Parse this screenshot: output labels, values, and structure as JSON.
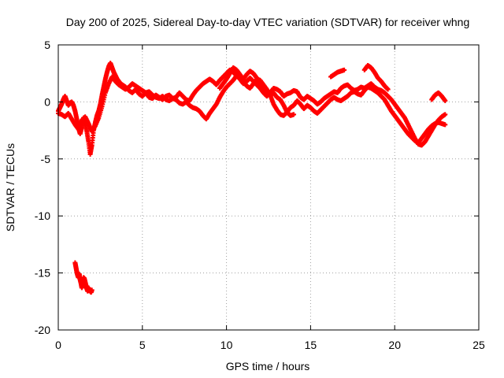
{
  "chart_data": {
    "type": "scatter",
    "title": "Day 200 of 2025, Sidereal Day-to-day VTEC variation (SDTVAR) for receiver whng",
    "xlabel": "GPS time / hours",
    "ylabel": "SDTVAR / TECUs",
    "xlim": [
      0,
      25
    ],
    "ylim": [
      -20,
      5
    ],
    "xticks": [
      0,
      5,
      10,
      15,
      20,
      25
    ],
    "yticks": [
      -20,
      -15,
      -10,
      -5,
      0,
      5
    ],
    "grid": true,
    "marker": "+",
    "series": [
      {
        "name": "SDTVAR",
        "color": "#ff0000",
        "segments": [
          {
            "x": [
              0.0,
              0.1,
              0.2,
              0.3,
              0.4,
              0.5,
              0.6,
              0.7,
              0.8,
              0.9,
              1.0,
              1.1,
              1.2,
              1.3,
              1.4,
              1.5,
              1.6,
              1.7,
              1.8,
              1.9,
              2.0,
              2.1,
              2.2,
              2.3,
              2.4,
              2.5,
              2.6,
              2.7,
              2.8,
              2.9,
              3.0,
              3.1,
              3.2,
              3.3,
              3.4,
              3.5,
              3.6,
              3.7,
              3.8,
              3.9,
              4.0,
              4.2,
              4.4,
              4.6,
              4.8,
              5.0,
              5.2,
              5.4,
              5.6,
              5.8,
              6.0,
              6.2,
              6.4,
              6.6,
              6.8,
              7.0,
              7.2,
              7.4,
              7.6,
              7.8,
              8.0,
              8.2,
              8.4,
              8.6,
              8.8,
              9.0,
              9.2,
              9.4,
              9.6,
              9.8,
              10.0,
              10.2,
              10.4,
              10.6,
              10.8,
              11.0,
              11.2,
              11.4,
              11.6,
              11.8,
              12.0,
              12.2,
              12.4,
              12.6,
              12.8,
              13.0,
              13.2,
              13.4,
              13.6,
              13.8,
              14.0,
              14.2,
              14.4,
              14.6,
              14.8,
              15.0,
              15.2,
              15.4,
              15.6,
              15.8,
              16.0,
              16.2,
              16.4,
              16.6,
              16.8,
              17.0,
              17.2,
              17.4,
              17.6,
              17.8,
              18.0,
              18.2,
              18.4,
              18.6,
              18.8,
              19.0,
              19.2,
              19.4,
              19.6,
              19.8,
              20.0,
              20.2,
              20.4,
              20.6,
              20.8,
              21.0,
              21.2,
              21.4,
              21.6,
              21.8,
              22.0,
              22.2,
              22.4,
              22.6,
              22.8,
              23.0
            ],
            "y": [
              -0.8,
              -0.5,
              -0.2,
              0.2,
              0.5,
              0.1,
              -0.3,
              -0.1,
              0.0,
              -0.3,
              -0.8,
              -1.5,
              -2.3,
              -2.8,
              -2.2,
              -1.4,
              -1.8,
              -2.6,
              -3.5,
              -4.6,
              -3.8,
              -2.5,
              -1.8,
              -1.2,
              -0.8,
              -0.2,
              0.6,
              1.3,
              2.0,
              2.6,
              3.1,
              3.4,
              3.0,
              2.6,
              2.3,
              2.0,
              1.8,
              1.6,
              1.5,
              1.4,
              1.3,
              1.0,
              0.8,
              1.1,
              0.7,
              0.5,
              0.8,
              0.4,
              0.3,
              0.6,
              0.4,
              0.2,
              0.5,
              0.6,
              0.3,
              0.4,
              0.8,
              0.5,
              0.2,
              0.1,
              0.6,
              1.0,
              1.3,
              1.6,
              1.8,
              2.0,
              1.8,
              1.5,
              1.9,
              2.2,
              2.5,
              2.8,
              2.6,
              2.3,
              2.0,
              1.6,
              1.8,
              2.1,
              1.8,
              1.5,
              1.2,
              0.8,
              0.5,
              0.8,
              1.2,
              1.1,
              0.9,
              0.5,
              0.7,
              0.8,
              1.0,
              0.9,
              0.4,
              0.2,
              0.5,
              0.3,
              0.1,
              -0.2,
              0.0,
              0.3,
              0.5,
              0.7,
              0.9,
              0.8,
              1.2,
              1.4,
              1.5,
              1.2,
              1.0,
              1.1,
              1.3,
              1.2,
              1.4,
              1.6,
              1.3,
              1.1,
              1.0,
              0.8,
              0.5,
              0.2,
              -0.2,
              -0.6,
              -1.0,
              -1.4,
              -2.0,
              -2.6,
              -3.2,
              -3.7,
              -3.8,
              -3.5,
              -3.0,
              -2.5,
              -2.0,
              -1.6,
              -1.3,
              -1.1
            ]
          },
          {
            "x": [
              0.0,
              0.2,
              0.4,
              0.6,
              0.8,
              1.0,
              1.2,
              1.4,
              1.6,
              1.8,
              2.0,
              2.2,
              2.4,
              2.6,
              2.8,
              3.0,
              3.2,
              3.4,
              3.6,
              3.8,
              4.0,
              4.2,
              4.4,
              4.6,
              4.8,
              5.0,
              5.2,
              5.4,
              5.6,
              5.8,
              6.0,
              6.2,
              6.4,
              6.6,
              6.8,
              7.0,
              7.2,
              7.4,
              7.6,
              7.8,
              8.0,
              8.2,
              8.4,
              8.6,
              8.8,
              9.0,
              9.2,
              9.4,
              9.6,
              9.8,
              10.0,
              10.2,
              10.4,
              10.6,
              10.8,
              11.0,
              11.2,
              11.4,
              11.6,
              11.8,
              12.0,
              12.2,
              12.4,
              12.6,
              12.8,
              13.0,
              13.2,
              13.4,
              13.6,
              13.8,
              14.0,
              14.2,
              14.4,
              14.6,
              14.8,
              15.0,
              15.2,
              15.4,
              15.6,
              15.8,
              16.0,
              16.2,
              16.4,
              16.6,
              16.8,
              17.0,
              17.2,
              17.4,
              17.6,
              17.8,
              18.0,
              18.2,
              18.4,
              18.6,
              18.8,
              19.0,
              19.2,
              19.4,
              19.6,
              19.8,
              20.0,
              20.2,
              20.4,
              20.6,
              20.8,
              21.0,
              21.2,
              21.4,
              21.6,
              21.8,
              22.0,
              22.2,
              22.4,
              22.6,
              22.8,
              23.0
            ],
            "y": [
              -1.0,
              -1.1,
              -1.3,
              -1.0,
              -1.5,
              -2.0,
              -2.4,
              -1.6,
              -1.3,
              -1.9,
              -2.6,
              -2.1,
              -1.4,
              -0.4,
              0.8,
              1.6,
              2.2,
              1.8,
              1.5,
              1.3,
              1.1,
              1.3,
              1.6,
              1.4,
              1.2,
              1.0,
              0.8,
              0.9,
              0.6,
              0.4,
              0.3,
              0.5,
              0.2,
              0.1,
              0.3,
              0.2,
              -0.1,
              -0.2,
              0.0,
              -0.3,
              -0.5,
              -0.6,
              -0.8,
              -1.2,
              -1.5,
              -1.0,
              -0.6,
              -0.2,
              0.4,
              0.9,
              1.3,
              1.6,
              1.9,
              2.3,
              2.1,
              1.8,
              1.4,
              1.2,
              1.6,
              2.0,
              1.9,
              1.5,
              1.1,
              0.6,
              -0.2,
              -0.7,
              -1.1,
              -1.2,
              -0.9,
              -0.5,
              -0.3,
              0.1,
              -0.2,
              -0.6,
              -0.3,
              -0.5,
              -0.8,
              -1.0,
              -0.7,
              -0.4,
              -0.1,
              0.2,
              0.4,
              0.2,
              0.1,
              0.3,
              0.5,
              0.8,
              0.9,
              0.7,
              0.6,
              1.0,
              1.3,
              1.2,
              1.0,
              0.8,
              0.5,
              0.2,
              -0.3,
              -0.8,
              -1.2,
              -1.6,
              -2.0,
              -2.4,
              -2.8,
              -3.1,
              -3.4,
              -3.6,
              -3.2,
              -2.8,
              -2.4,
              -2.1,
              -1.9,
              -1.8,
              -1.9,
              -2.0
            ]
          },
          {
            "x": [
              9.6,
              9.8,
              10.0,
              10.2,
              10.4,
              10.6,
              10.8,
              11.0,
              11.2,
              11.4,
              11.6,
              11.8,
              12.0,
              12.2,
              12.4,
              12.6,
              12.8,
              13.0,
              13.2,
              13.4,
              13.6,
              13.8,
              14.0,
              16.2,
              16.4,
              16.6,
              16.8,
              17.0,
              18.2,
              18.4,
              18.6,
              18.8,
              19.0,
              19.2,
              19.4,
              19.6,
              22.2,
              22.4,
              22.6,
              22.8,
              23.0
            ],
            "y": [
              1.2,
              1.6,
              2.0,
              2.5,
              3.0,
              2.8,
              2.4,
              2.0,
              2.4,
              2.7,
              2.5,
              2.1,
              1.6,
              1.2,
              0.9,
              0.6,
              0.8,
              0.4,
              0.2,
              -0.3,
              -0.9,
              -1.2,
              -1.1,
              2.2,
              2.4,
              2.6,
              2.7,
              2.8,
              2.8,
              3.2,
              3.0,
              2.6,
              2.1,
              1.8,
              1.4,
              1.1,
              0.2,
              0.6,
              0.8,
              0.5,
              0.1
            ]
          },
          {
            "x": [
              1.0,
              1.05,
              1.1,
              1.15,
              1.2,
              1.25,
              1.3,
              1.35,
              1.4,
              1.45,
              1.5,
              1.55,
              1.6,
              1.65,
              1.7,
              1.75,
              1.8,
              1.85,
              1.9,
              1.95,
              2.0
            ],
            "y": [
              -14.1,
              -14.5,
              -14.9,
              -15.2,
              -15.4,
              -15.1,
              -15.6,
              -15.9,
              -16.3,
              -16.0,
              -15.4,
              -15.5,
              -15.8,
              -16.1,
              -16.4,
              -16.6,
              -16.3,
              -16.5,
              -16.6,
              -16.7,
              -16.5
            ]
          }
        ]
      }
    ]
  }
}
